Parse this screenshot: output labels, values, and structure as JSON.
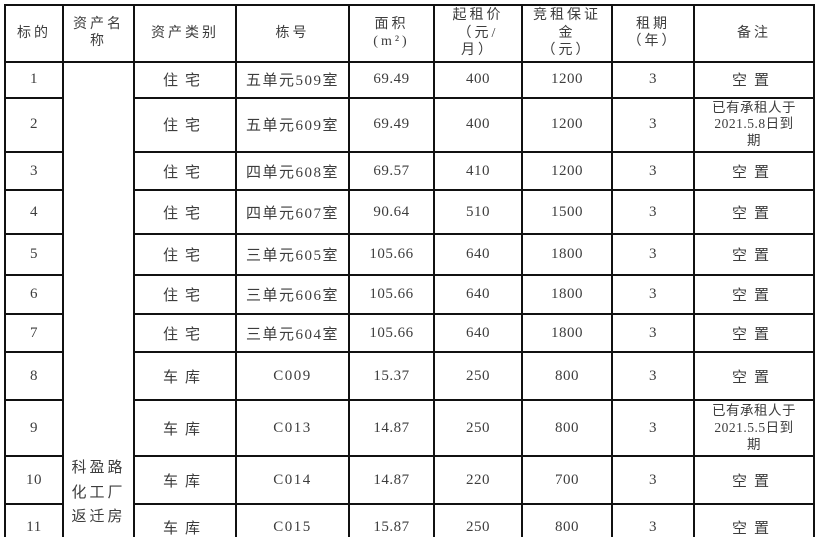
{
  "table": {
    "columns": [
      {
        "key": "no",
        "label": "标的"
      },
      {
        "key": "asset",
        "label": "资产名\n称"
      },
      {
        "key": "category",
        "label": "资产类别"
      },
      {
        "key": "unit",
        "label": "栋号"
      },
      {
        "key": "area",
        "label": "面积\n(m²)"
      },
      {
        "key": "price",
        "label": "起租价\n（元/\n月）"
      },
      {
        "key": "deposit",
        "label": "竞租保证\n金\n（元）"
      },
      {
        "key": "term",
        "label": "租期\n（年）"
      },
      {
        "key": "remark",
        "label": "备注"
      }
    ],
    "asset_name": "科盈路\n化工厂\n返迁房",
    "rows": [
      {
        "no": "1",
        "category": "住宅",
        "unit": "五单元509室",
        "area": "69.49",
        "price": "400",
        "deposit": "1200",
        "term": "3",
        "remark": "空置"
      },
      {
        "no": "2",
        "category": "住宅",
        "unit": "五单元609室",
        "area": "69.49",
        "price": "400",
        "deposit": "1200",
        "term": "3",
        "remark": "已有承租人于\n2021.5.8日到\n期"
      },
      {
        "no": "3",
        "category": "住宅",
        "unit": "四单元608室",
        "area": "69.57",
        "price": "410",
        "deposit": "1200",
        "term": "3",
        "remark": "空置"
      },
      {
        "no": "4",
        "category": "住宅",
        "unit": "四单元607室",
        "area": "90.64",
        "price": "510",
        "deposit": "1500",
        "term": "3",
        "remark": "空置"
      },
      {
        "no": "5",
        "category": "住宅",
        "unit": "三单元605室",
        "area": "105.66",
        "price": "640",
        "deposit": "1800",
        "term": "3",
        "remark": "空置"
      },
      {
        "no": "6",
        "category": "住宅",
        "unit": "三单元606室",
        "area": "105.66",
        "price": "640",
        "deposit": "1800",
        "term": "3",
        "remark": "空置"
      },
      {
        "no": "7",
        "category": "住宅",
        "unit": "三单元604室",
        "area": "105.66",
        "price": "640",
        "deposit": "1800",
        "term": "3",
        "remark": "空置"
      },
      {
        "no": "8",
        "category": "车库",
        "unit": "C009",
        "area": "15.37",
        "price": "250",
        "deposit": "800",
        "term": "3",
        "remark": "空置"
      },
      {
        "no": "9",
        "category": "车库",
        "unit": "C013",
        "area": "14.87",
        "price": "250",
        "deposit": "800",
        "term": "3",
        "remark": "已有承租人于\n2021.5.5日到\n期"
      },
      {
        "no": "10",
        "category": "车库",
        "unit": "C014",
        "area": "14.87",
        "price": "220",
        "deposit": "700",
        "term": "3",
        "remark": "空置"
      },
      {
        "no": "11",
        "category": "车库",
        "unit": "C015",
        "area": "15.87",
        "price": "250",
        "deposit": "800",
        "term": "3",
        "remark": "空置"
      }
    ]
  }
}
